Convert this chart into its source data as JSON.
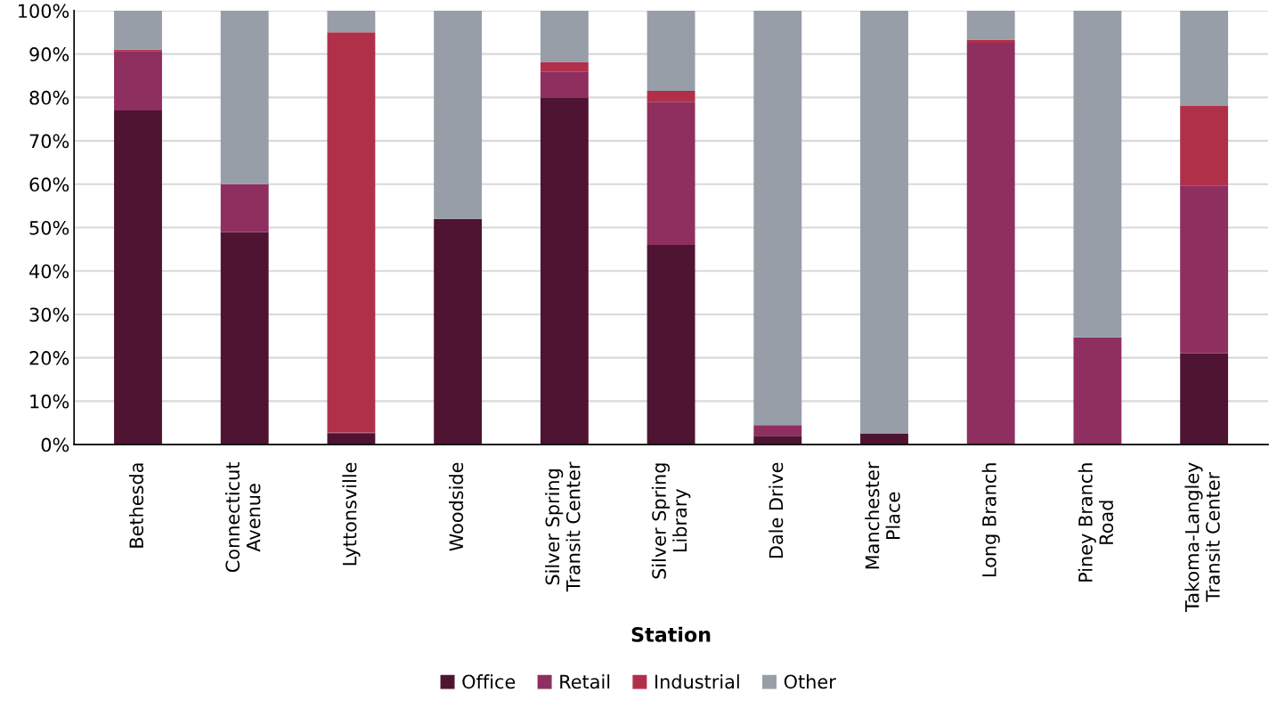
{
  "chart_data": {
    "type": "bar",
    "stacked": true,
    "xlabel": "Station",
    "categories": [
      "Bethesda",
      "Connecticut\nAvenue",
      "Lyttonsville",
      "Woodside",
      "Silver Spring\nTransit Center",
      "Silver Spring\nLibrary",
      "Dale Drive",
      "Manchester\nPlace",
      "Long Branch",
      "Piney Branch\nRoad",
      "Takoma-Langley\nTransit Center"
    ],
    "series": [
      {
        "name": "Office",
        "color": "#4e1432",
        "values": [
          77,
          49,
          2.5,
          52,
          80,
          46,
          2,
          2.5,
          null,
          null,
          21
        ]
      },
      {
        "name": "Retail",
        "color": "#8e2f5f",
        "values": [
          13.7,
          11,
          0.3,
          0,
          6,
          33,
          2.5,
          0,
          92.6,
          24.7,
          38.7
        ]
      },
      {
        "name": "Industrial",
        "color": "#b0304a",
        "values": [
          0.3,
          0,
          92.2,
          0,
          2.2,
          2.5,
          0,
          0,
          0.7,
          0,
          18.3
        ]
      },
      {
        "name": "Other",
        "color": "#979ea8",
        "values": [
          9,
          40,
          5,
          48,
          11.8,
          18.5,
          95.5,
          97.5,
          6.7,
          75.3,
          22
        ]
      }
    ],
    "ylim": [
      0,
      100
    ],
    "yticks": [
      {
        "value": 0,
        "label": "0%"
      },
      {
        "value": 10,
        "label": "10%"
      },
      {
        "value": 20,
        "label": "20%"
      },
      {
        "value": 30,
        "label": "30%"
      },
      {
        "value": 40,
        "label": "40%"
      },
      {
        "value": 50,
        "label": "50%"
      },
      {
        "value": 60,
        "label": "60%"
      },
      {
        "value": 70,
        "label": "70%"
      },
      {
        "value": 80,
        "label": "80%"
      },
      {
        "value": 90,
        "label": "90%"
      },
      {
        "value": 100,
        "label": "100%"
      }
    ],
    "grid": "y",
    "legend": "bottom"
  }
}
